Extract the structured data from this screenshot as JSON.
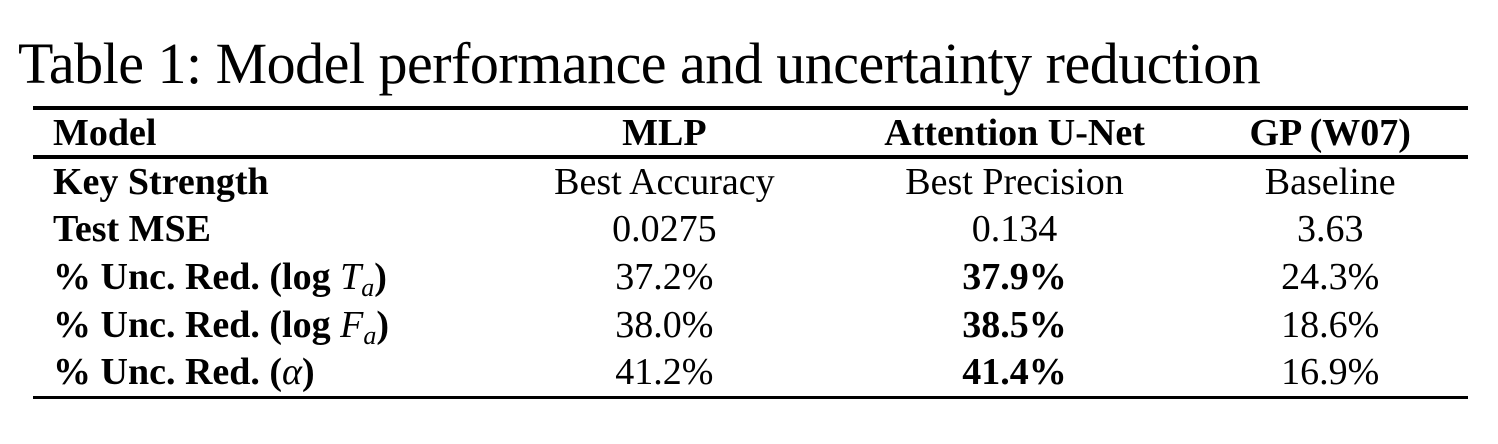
{
  "caption": "Table 1: Model performance and uncertainty reduction",
  "colors": {
    "text": "#000000",
    "background": "#ffffff",
    "rule": "#000000"
  },
  "table": {
    "columns": [
      "Model",
      "MLP",
      "Attention U-Net",
      "GP (W07)"
    ],
    "rows": [
      {
        "label": {
          "prefix": "Key Strength",
          "math": "",
          "sub": "",
          "suffix": ""
        },
        "values": [
          "Best Accuracy",
          "Best Precision",
          "Baseline"
        ]
      },
      {
        "label": {
          "prefix": "Test MSE",
          "math": "",
          "sub": "",
          "suffix": ""
        },
        "values": [
          "0.0275",
          "0.134",
          "3.63"
        ]
      },
      {
        "label": {
          "prefix": "% Unc. Red. (log ",
          "math": "T",
          "sub": "a",
          "suffix": ")"
        },
        "values": [
          "37.2%",
          "37.9%",
          "24.3%"
        ]
      },
      {
        "label": {
          "prefix": "% Unc. Red. (log ",
          "math": "F",
          "sub": "a",
          "suffix": ")"
        },
        "values": [
          "38.0%",
          "38.5%",
          "18.6%"
        ]
      },
      {
        "label": {
          "prefix": "% Unc. Red. (",
          "math": "α",
          "sub": "",
          "suffix": ")"
        },
        "values": [
          "41.2%",
          "41.4%",
          "16.9%"
        ]
      }
    ]
  }
}
